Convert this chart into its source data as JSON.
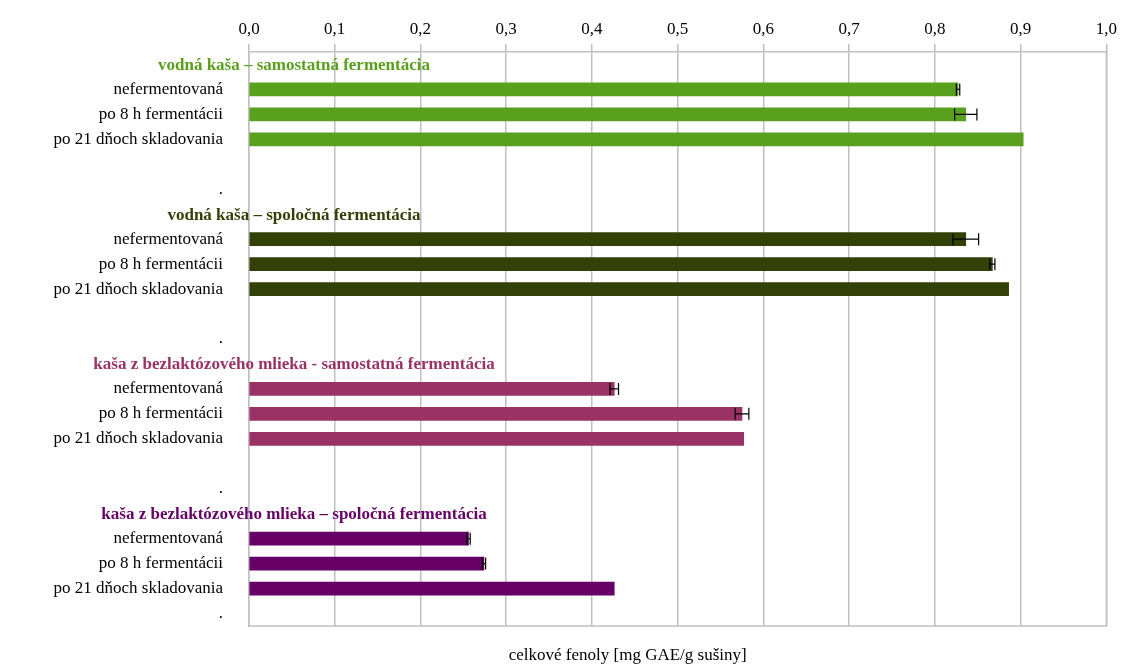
{
  "chart_data": {
    "type": "bar",
    "orientation": "horizontal",
    "xlabel": "celkové fenoly [mg GAE/g sušiny]",
    "categories": [
      null,
      "nefermentovaná",
      "po 8 h fermentácii",
      "po 21 dňoch skladovania",
      null,
      ".",
      null,
      "nefermentovaná",
      "po 8 h fermentácii",
      "po 21 dňoch skladovania",
      null,
      ".",
      null,
      "nefermentovaná",
      "po 8 h fermentácii",
      "po 21 dňoch skladovania",
      null,
      ".",
      null,
      "nefermentovaná",
      "po 8 h fermentácii",
      "po 21 dňoch skladovania",
      "."
    ],
    "series": [
      {
        "name": "vodná kaša – samostatná fermentácia",
        "color": "#58a01e",
        "values": [
          null,
          0.827,
          0.836,
          0.903,
          null,
          null,
          null,
          null,
          null,
          null,
          null,
          null,
          null,
          null,
          null,
          null,
          null,
          null,
          null,
          null,
          null,
          null,
          null
        ],
        "errors": [
          null,
          0.002,
          0.013,
          null,
          null,
          null,
          null,
          null,
          null,
          null,
          null,
          null,
          null,
          null,
          null,
          null,
          null,
          null,
          null,
          null,
          null,
          null,
          null
        ]
      },
      {
        "name": "vodná kaša – spoločná fermentácia",
        "color": "#334008",
        "values": [
          null,
          null,
          null,
          null,
          null,
          null,
          null,
          0.836,
          0.867,
          0.886,
          null,
          null,
          null,
          null,
          null,
          null,
          null,
          null,
          null,
          null,
          null,
          null,
          null
        ],
        "errors": [
          null,
          null,
          null,
          null,
          null,
          null,
          null,
          0.015,
          0.003,
          null,
          null,
          null,
          null,
          null,
          null,
          null,
          null,
          null,
          null,
          null,
          null,
          null,
          null
        ]
      },
      {
        "name": "kaša z bezlaktózového mlieka - samostatná fermentácia",
        "color": "#993366",
        "values": [
          null,
          null,
          null,
          null,
          null,
          null,
          null,
          null,
          null,
          null,
          null,
          null,
          null,
          0.426,
          0.575,
          0.577,
          null,
          null,
          null,
          null,
          null,
          null,
          null
        ],
        "errors": [
          null,
          null,
          null,
          null,
          null,
          null,
          null,
          null,
          null,
          null,
          null,
          null,
          null,
          0.005,
          0.008,
          null,
          null,
          null,
          null,
          null,
          null,
          null,
          null
        ]
      },
      {
        "name": "kaša z bezlaktózového mlieka – spoločná fermentácia",
        "color": "#660066",
        "values": [
          null,
          null,
          null,
          null,
          null,
          null,
          null,
          null,
          null,
          null,
          null,
          null,
          null,
          null,
          null,
          null,
          null,
          null,
          null,
          0.256,
          0.274,
          0.426,
          null
        ],
        "errors": [
          null,
          null,
          null,
          null,
          null,
          null,
          null,
          null,
          null,
          null,
          null,
          null,
          null,
          null,
          null,
          null,
          null,
          null,
          null,
          0.002,
          0.002,
          null,
          null
        ]
      }
    ],
    "xlim": [
      0,
      1
    ],
    "xticks": [
      {
        "value": 0,
        "label": "0,0"
      },
      {
        "value": 0.1,
        "label": "0,1"
      },
      {
        "value": 0.2,
        "label": "0,2"
      },
      {
        "value": 0.3,
        "label": "0,3"
      },
      {
        "value": 0.4,
        "label": "0,4"
      },
      {
        "value": 0.5,
        "label": "0,5"
      },
      {
        "value": 0.6,
        "label": "0,6"
      },
      {
        "value": 0.7,
        "label": "0,7"
      },
      {
        "value": 0.8,
        "label": "0,8"
      },
      {
        "value": 0.9,
        "label": "0,9"
      },
      {
        "value": 1,
        "label": "1,0"
      }
    ],
    "grid": "x",
    "legend": false
  }
}
